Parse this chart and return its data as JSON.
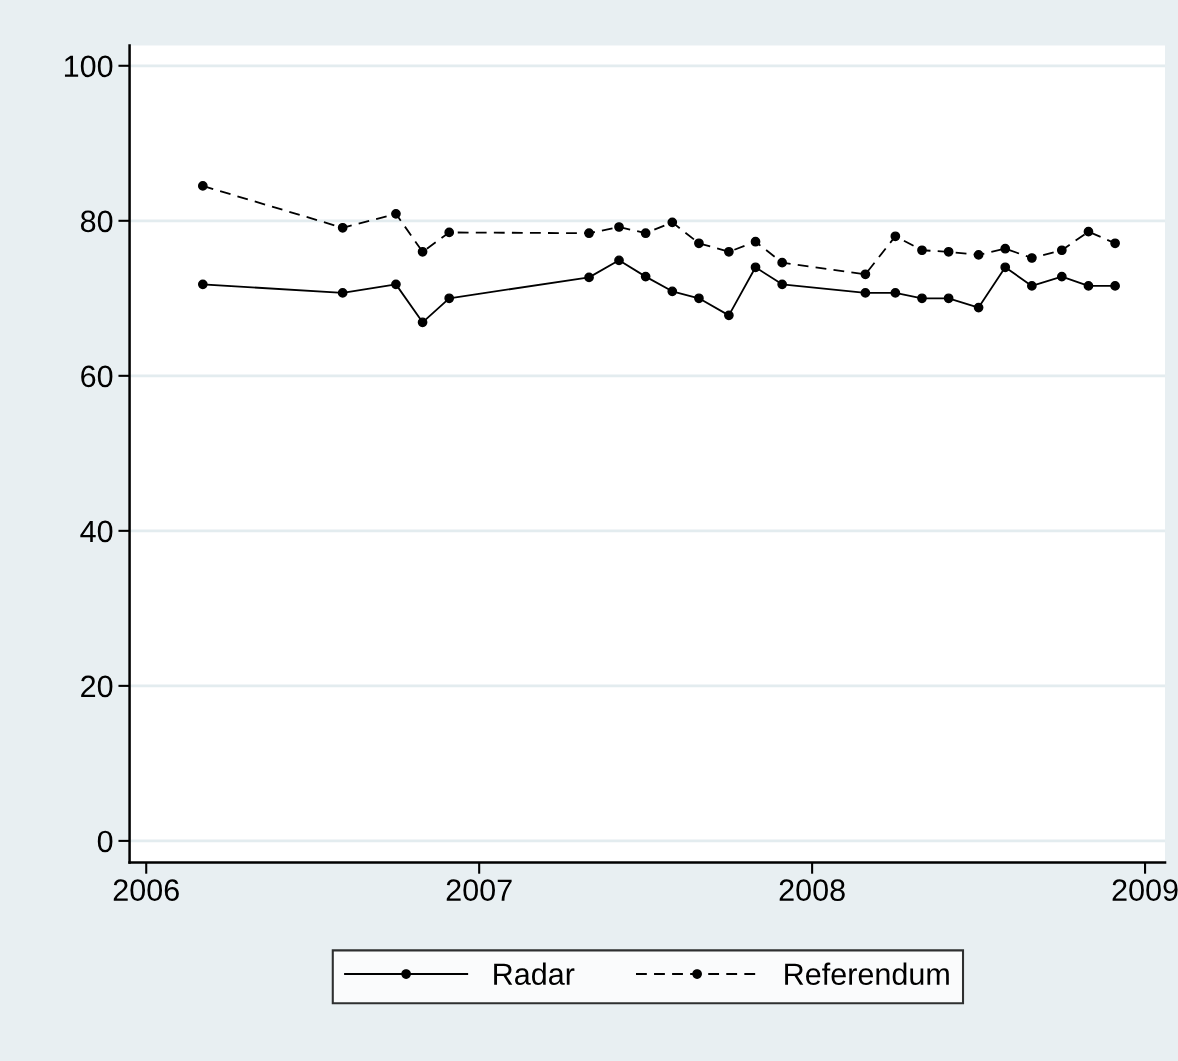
{
  "chart_data": {
    "type": "line",
    "x": [
      2006.17,
      2006.59,
      2006.75,
      2006.83,
      2006.91,
      2007.33,
      2007.42,
      2007.5,
      2007.58,
      2007.66,
      2007.75,
      2007.83,
      2007.91,
      2008.16,
      2008.25,
      2008.33,
      2008.41,
      2008.5,
      2008.58,
      2008.66,
      2008.75,
      2008.83,
      2008.91
    ],
    "series": [
      {
        "name": "Radar",
        "color": "#000000",
        "line_style": "solid",
        "values": [
          71.8,
          70.7,
          71.8,
          66.9,
          70.0,
          72.7,
          74.9,
          72.8,
          70.9,
          70.0,
          67.8,
          74.0,
          71.8,
          70.7,
          70.7,
          70.0,
          70.0,
          68.8,
          74.0,
          71.6,
          72.8,
          71.6,
          71.6
        ]
      },
      {
        "name": "Referendum",
        "color": "#000000",
        "line_style": "dashed",
        "values": [
          84.5,
          79.1,
          80.9,
          76.0,
          78.5,
          78.4,
          79.2,
          78.4,
          79.8,
          77.1,
          76.0,
          77.3,
          74.6,
          73.1,
          78.0,
          76.2,
          76.0,
          75.6,
          76.4,
          75.2,
          76.2,
          78.6,
          77.1
        ]
      }
    ],
    "xlim": [
      2005.95,
      2009.06
    ],
    "xticks": [
      2006,
      2007,
      2008,
      2009
    ],
    "ylim": [
      -2.8,
      102.6
    ],
    "yticks": [
      0,
      20,
      40,
      60,
      80,
      100
    ],
    "grid": "y",
    "legend": "bottom",
    "marker": "circle"
  }
}
